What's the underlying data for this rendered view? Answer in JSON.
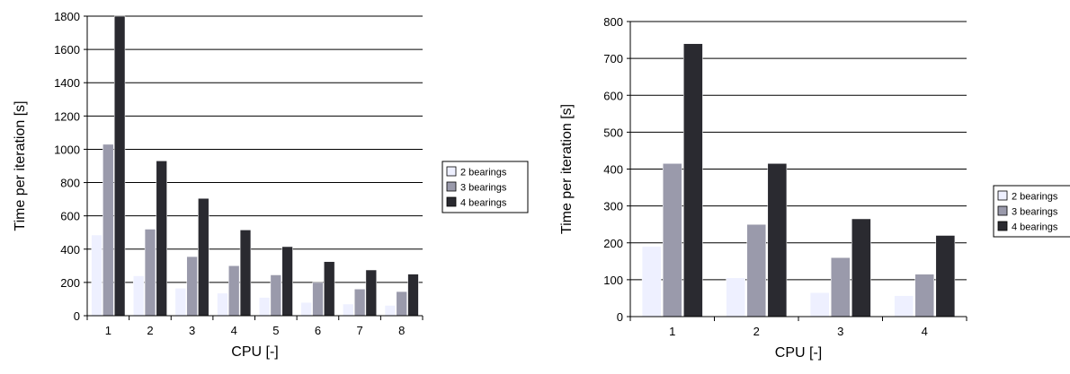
{
  "chart_data": [
    {
      "type": "bar",
      "xlabel": "CPU [-]",
      "ylabel": "Time per iteration [s]",
      "ylim": [
        0,
        1800
      ],
      "yticks": [
        0,
        200,
        400,
        600,
        800,
        1000,
        1200,
        1400,
        1600,
        1800
      ],
      "categories": [
        "1",
        "2",
        "3",
        "4",
        "5",
        "6",
        "7",
        "8"
      ],
      "grid": "horizontal",
      "legend_position": "right",
      "series": [
        {
          "name": "2 bearings",
          "color": "#eef0ff",
          "values": [
            485,
            240,
            165,
            135,
            110,
            80,
            70,
            62
          ]
        },
        {
          "name": "3 bearings",
          "color": "#9a9aab",
          "values": [
            1030,
            520,
            355,
            300,
            245,
            200,
            160,
            145
          ]
        },
        {
          "name": "4 bearings",
          "color": "#2a2a30",
          "values": [
            1800,
            930,
            705,
            515,
            415,
            325,
            275,
            250
          ]
        }
      ]
    },
    {
      "type": "bar",
      "xlabel": "CPU [-]",
      "ylabel": "Time per iteration [s]",
      "ylim": [
        0,
        800
      ],
      "yticks": [
        0,
        100,
        200,
        300,
        400,
        500,
        600,
        700,
        800
      ],
      "categories": [
        "1",
        "2",
        "3",
        "4"
      ],
      "grid": "horizontal",
      "legend_position": "right",
      "series": [
        {
          "name": "2 bearings",
          "color": "#eef0ff",
          "values": [
            190,
            105,
            65,
            57
          ]
        },
        {
          "name": "3 bearings",
          "color": "#9a9aab",
          "values": [
            415,
            250,
            160,
            115
          ]
        },
        {
          "name": "4 bearings",
          "color": "#2a2a30",
          "values": [
            740,
            415,
            265,
            220
          ]
        }
      ]
    }
  ]
}
